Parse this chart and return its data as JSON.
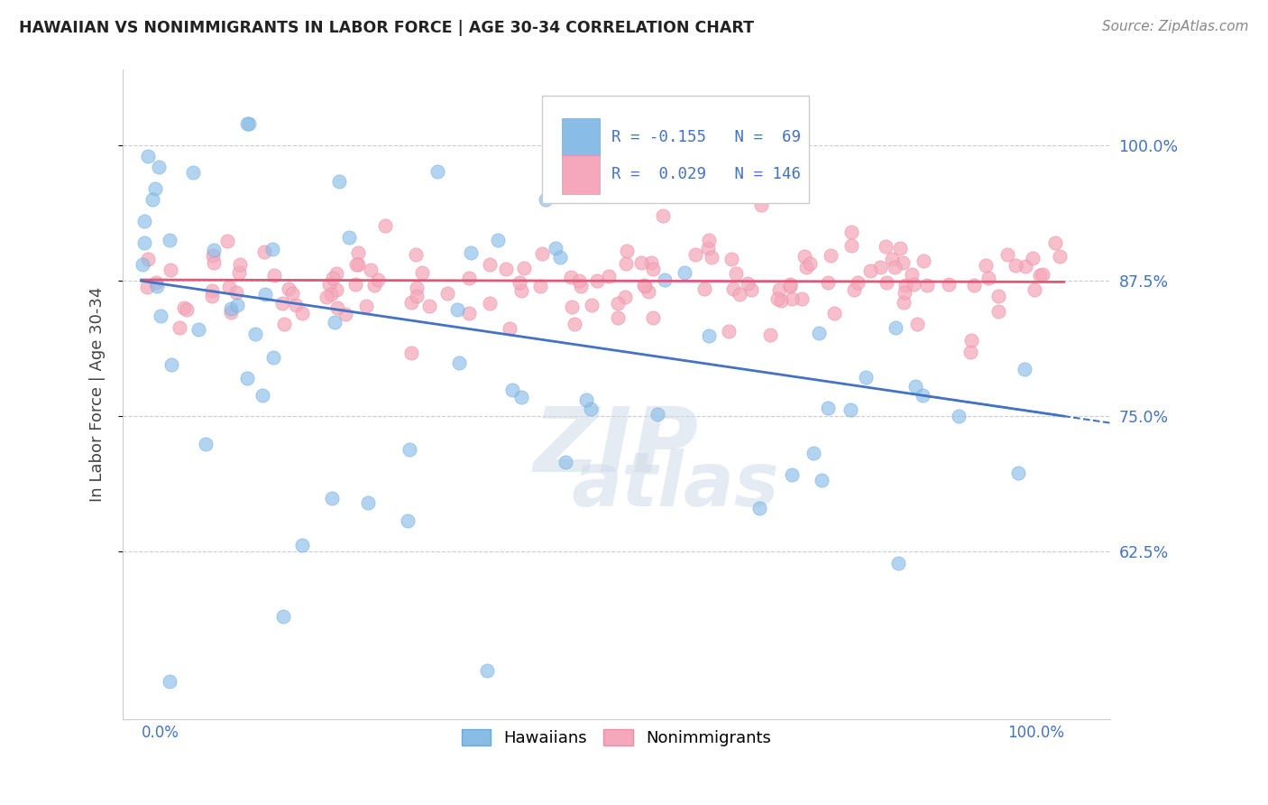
{
  "title": "HAWAIIAN VS NONIMMIGRANTS IN LABOR FORCE | AGE 30-34 CORRELATION CHART",
  "source": "Source: ZipAtlas.com",
  "ylabel": "In Labor Force | Age 30-34",
  "ytick_vals": [
    0.625,
    0.75,
    0.875,
    1.0
  ],
  "ytick_labels": [
    "62.5%",
    "75.0%",
    "87.5%",
    "100.0%"
  ],
  "xlim": [
    -0.02,
    1.05
  ],
  "ylim": [
    0.47,
    1.07
  ],
  "legend_r1": "-0.155",
  "legend_n1": "69",
  "legend_r2": "0.029",
  "legend_n2": "146",
  "hawaiian_color": "#89bde8",
  "hawaiian_edge": "#6aaad8",
  "nonimmigrant_color": "#f5a8bc",
  "nonimmigrant_edge": "#e890a8",
  "trend_blue": "#4472c4",
  "trend_pink": "#e05878",
  "marker_size": 120,
  "hawaii_seed": 42,
  "nonimm_seed": 99
}
